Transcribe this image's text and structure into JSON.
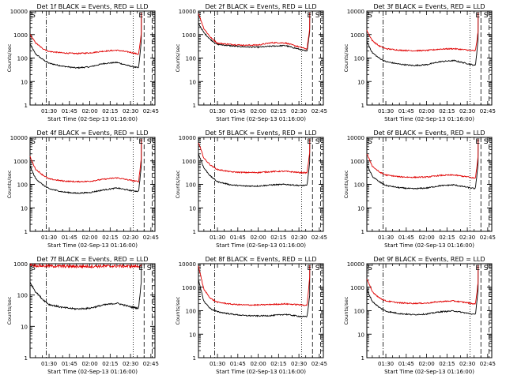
{
  "colors": {
    "events": "#000000",
    "lld": "#e00000",
    "axes": "#000000"
  },
  "chart_data": [
    {
      "type": "line",
      "title": "Det 1f BLACK = Events, RED = LLD",
      "xlabel": "Start Time (02-Sep-13 01:16:00)",
      "ylabel": "Counts/sec",
      "yscale": "log",
      "ylim": [
        1,
        10000
      ],
      "x_ticks": [
        "01:30",
        "01:45",
        "02:00",
        "02:15",
        "02:30",
        "02:45"
      ],
      "y_ticks": [
        "1",
        "10",
        "100",
        "1000",
        "10000"
      ],
      "markers": [
        "S",
        "E",
        "S"
      ],
      "series": [
        {
          "name": "BLACK = Events",
          "x": [
            "01:16",
            "01:20",
            "01:25",
            "01:30",
            "01:40",
            "01:50",
            "02:00",
            "02:10",
            "02:20",
            "02:30",
            "02:36",
            "02:38"
          ],
          "values": [
            400,
            150,
            90,
            60,
            45,
            38,
            42,
            58,
            65,
            45,
            38,
            600
          ]
        },
        {
          "name": "RED = LLD",
          "x": [
            "01:16",
            "01:20",
            "01:25",
            "01:30",
            "01:40",
            "01:50",
            "02:00",
            "02:10",
            "02:20",
            "02:30",
            "02:36",
            "02:38"
          ],
          "values": [
            1000,
            450,
            260,
            190,
            165,
            155,
            165,
            195,
            215,
            175,
            145,
            1200
          ]
        }
      ]
    },
    {
      "type": "line",
      "title": "Det 2f BLACK = Events, RED = LLD",
      "xlabel": "Start Time (02-Sep-13 01:16:00)",
      "ylabel": "Counts/sec",
      "yscale": "log",
      "ylim": [
        1,
        10000
      ],
      "x_ticks": [
        "01:30",
        "01:45",
        "02:00",
        "02:15",
        "02:30",
        "02:45"
      ],
      "y_ticks": [
        "1",
        "10",
        "100",
        "1000",
        "10000"
      ],
      "markers": [
        "E",
        "S"
      ],
      "series": [
        {
          "name": "BLACK = Events",
          "x": [
            "01:16",
            "01:20",
            "01:25",
            "01:30",
            "01:40",
            "01:50",
            "02:00",
            "02:10",
            "02:20",
            "02:30",
            "02:36",
            "02:38"
          ],
          "values": [
            3000,
            1200,
            600,
            380,
            330,
            300,
            290,
            320,
            340,
            240,
            190,
            1500
          ]
        },
        {
          "name": "RED = LLD",
          "x": [
            "01:16",
            "01:20",
            "01:25",
            "01:30",
            "01:40",
            "01:50",
            "02:00",
            "02:10",
            "02:20",
            "02:30",
            "02:36",
            "02:38"
          ],
          "values": [
            8000,
            1800,
            750,
            430,
            380,
            350,
            360,
            450,
            440,
            300,
            240,
            2000
          ]
        }
      ]
    },
    {
      "type": "line",
      "title": "Det 3f BLACK = Events, RED = LLD",
      "xlabel": "Start Time (02-Sep-13 01:16:00)",
      "ylabel": "Counts/sec",
      "yscale": "log",
      "ylim": [
        1,
        10000
      ],
      "x_ticks": [
        "01:30",
        "01:45",
        "02:00",
        "02:15",
        "02:30",
        "02:45"
      ],
      "y_ticks": [
        "1",
        "10",
        "100",
        "1000",
        "10000"
      ],
      "markers": [
        "S",
        "E",
        "S"
      ],
      "series": [
        {
          "name": "BLACK = Events",
          "x": [
            "01:16",
            "01:20",
            "01:25",
            "01:30",
            "01:40",
            "01:50",
            "02:00",
            "02:10",
            "02:20",
            "02:30",
            "02:36",
            "02:38"
          ],
          "values": [
            500,
            170,
            100,
            70,
            55,
            48,
            52,
            70,
            78,
            58,
            48,
            700
          ]
        },
        {
          "name": "RED = LLD",
          "x": [
            "01:16",
            "01:20",
            "01:25",
            "01:30",
            "01:40",
            "01:50",
            "02:00",
            "02:10",
            "02:20",
            "02:30",
            "02:36",
            "02:38"
          ],
          "values": [
            1500,
            550,
            330,
            250,
            215,
            205,
            210,
            240,
            250,
            220,
            200,
            1500
          ]
        }
      ]
    },
    {
      "type": "line",
      "title": "Det 4f BLACK = Events, RED = LLD",
      "xlabel": "Start Time (02-Sep-13 01:16:00)",
      "ylabel": "Counts/sec",
      "yscale": "log",
      "ylim": [
        1,
        10000
      ],
      "x_ticks": [
        "01:30",
        "01:45",
        "02:00",
        "02:15",
        "02:30",
        "02:45"
      ],
      "y_ticks": [
        "1",
        "10",
        "100",
        "1000",
        "10000"
      ],
      "markers": [
        "S",
        "E",
        "S"
      ],
      "series": [
        {
          "name": "BLACK = Events",
          "x": [
            "01:16",
            "01:20",
            "01:25",
            "01:30",
            "01:40",
            "01:50",
            "02:00",
            "02:10",
            "02:20",
            "02:30",
            "02:36",
            "02:38"
          ],
          "values": [
            600,
            180,
            100,
            65,
            48,
            42,
            45,
            58,
            70,
            55,
            50,
            700
          ]
        },
        {
          "name": "RED = LLD",
          "x": [
            "01:16",
            "01:20",
            "01:25",
            "01:30",
            "01:40",
            "01:50",
            "02:00",
            "02:10",
            "02:20",
            "02:30",
            "02:36",
            "02:38"
          ],
          "values": [
            1500,
            450,
            260,
            170,
            140,
            130,
            135,
            165,
            190,
            150,
            130,
            1500
          ]
        }
      ]
    },
    {
      "type": "line",
      "title": "Det 5f BLACK = Events, RED = LLD",
      "xlabel": "Start Time (02-Sep-13 01:16:00)",
      "ylabel": "Counts/sec",
      "yscale": "log",
      "ylim": [
        1,
        10000
      ],
      "x_ticks": [
        "01:30",
        "01:45",
        "02:00",
        "02:15",
        "02:30",
        "02:45"
      ],
      "y_ticks": [
        "1",
        "10",
        "100",
        "1000",
        "10000"
      ],
      "markers": [
        "E",
        "S"
      ],
      "series": [
        {
          "name": "BLACK = Events",
          "x": [
            "01:16",
            "01:20",
            "01:25",
            "01:30",
            "01:40",
            "01:50",
            "02:00",
            "02:10",
            "02:20",
            "02:30",
            "02:36",
            "02:38"
          ],
          "values": [
            2000,
            500,
            220,
            130,
            95,
            85,
            85,
            95,
            100,
            90,
            90,
            1000
          ]
        },
        {
          "name": "RED = LLD",
          "x": [
            "01:16",
            "01:20",
            "01:25",
            "01:30",
            "01:40",
            "01:50",
            "02:00",
            "02:10",
            "02:20",
            "02:30",
            "02:36",
            "02:38"
          ],
          "values": [
            6000,
            1300,
            650,
            430,
            340,
            320,
            320,
            350,
            360,
            320,
            310,
            2500
          ]
        }
      ]
    },
    {
      "type": "line",
      "title": "Det 6f BLACK = Events, RED = LLD",
      "xlabel": "Start Time (02-Sep-13 01:16:00)",
      "ylabel": "Counts/sec",
      "yscale": "log",
      "ylim": [
        1,
        10000
      ],
      "x_ticks": [
        "01:30",
        "01:45",
        "02:00",
        "02:15",
        "02:30",
        "02:45"
      ],
      "y_ticks": [
        "1",
        "10",
        "100",
        "1000",
        "10000"
      ],
      "markers": [
        "S",
        "E",
        "S"
      ],
      "series": [
        {
          "name": "BLACK = Events",
          "x": [
            "01:16",
            "01:20",
            "01:25",
            "01:30",
            "01:40",
            "01:50",
            "02:00",
            "02:10",
            "02:20",
            "02:30",
            "02:36",
            "02:38"
          ],
          "values": [
            700,
            220,
            130,
            90,
            72,
            65,
            70,
            88,
            95,
            75,
            65,
            900
          ]
        },
        {
          "name": "RED = LLD",
          "x": [
            "01:16",
            "01:20",
            "01:25",
            "01:30",
            "01:40",
            "01:50",
            "02:00",
            "02:10",
            "02:20",
            "02:30",
            "02:36",
            "02:38"
          ],
          "values": [
            2000,
            600,
            340,
            250,
            210,
            200,
            205,
            240,
            250,
            210,
            180,
            1800
          ]
        }
      ]
    },
    {
      "type": "line",
      "title": "Det 7f BLACK = Events, RED = LLD",
      "xlabel": "Start Time (02-Sep-13 01:16:00)",
      "ylabel": "Counts/sec",
      "yscale": "log",
      "ylim": [
        1,
        1000
      ],
      "x_ticks": [
        "01:30",
        "01:45",
        "02:00",
        "02:15",
        "02:30",
        "02:45"
      ],
      "y_ticks": [
        "1",
        "10",
        "100",
        "1000"
      ],
      "markers": [
        "S",
        "E",
        "S"
      ],
      "series": [
        {
          "name": "BLACK = Events",
          "x": [
            "01:16",
            "01:20",
            "01:25",
            "01:30",
            "01:40",
            "01:50",
            "02:00",
            "02:10",
            "02:20",
            "02:30",
            "02:36",
            "02:38"
          ],
          "values": [
            250,
            130,
            75,
            50,
            40,
            36,
            38,
            48,
            55,
            42,
            38,
            300
          ]
        },
        {
          "name": "RED = LLD",
          "x": [
            "01:16",
            "01:20",
            "01:25",
            "01:30",
            "01:40",
            "01:50",
            "02:00",
            "02:10",
            "02:20",
            "02:30",
            "02:36",
            "02:38"
          ],
          "values": [
            950,
            870,
            850,
            840,
            830,
            820,
            825,
            835,
            840,
            830,
            820,
            950
          ]
        }
      ]
    },
    {
      "type": "line",
      "title": "Det 8f BLACK = Events, RED = LLD",
      "xlabel": "Start Time (02-Sep-13 01:16:00)",
      "ylabel": "Counts/sec",
      "yscale": "log",
      "ylim": [
        1,
        10000
      ],
      "x_ticks": [
        "01:30",
        "01:45",
        "02:00",
        "02:15",
        "02:30",
        "02:45"
      ],
      "y_ticks": [
        "1",
        "10",
        "100",
        "1000",
        "10000"
      ],
      "markers": [
        "E",
        "S"
      ],
      "series": [
        {
          "name": "BLACK = Events",
          "x": [
            "01:16",
            "01:20",
            "01:25",
            "01:30",
            "01:40",
            "01:50",
            "02:00",
            "02:10",
            "02:20",
            "02:30",
            "02:36",
            "02:38"
          ],
          "values": [
            2000,
            250,
            120,
            90,
            72,
            62,
            60,
            62,
            70,
            58,
            55,
            500
          ]
        },
        {
          "name": "RED = LLD",
          "x": [
            "01:16",
            "01:20",
            "01:25",
            "01:30",
            "01:40",
            "01:50",
            "02:00",
            "02:10",
            "02:20",
            "02:30",
            "02:36",
            "02:38"
          ],
          "values": [
            8000,
            800,
            330,
            230,
            190,
            175,
            175,
            185,
            195,
            180,
            170,
            3000
          ]
        }
      ]
    },
    {
      "type": "line",
      "title": "Det 9f BLACK = Events, RED = LLD",
      "xlabel": "Start Time (02-Sep-13 01:16:00)",
      "ylabel": "Counts/sec",
      "yscale": "log",
      "ylim": [
        1,
        10000
      ],
      "x_ticks": [
        "01:30",
        "01:45",
        "02:00",
        "02:15",
        "02:30",
        "02:45"
      ],
      "y_ticks": [
        "1",
        "10",
        "100",
        "1000",
        "10000"
      ],
      "markers": [
        "S",
        "E",
        "S"
      ],
      "series": [
        {
          "name": "BLACK = Events",
          "x": [
            "01:16",
            "01:20",
            "01:25",
            "01:30",
            "01:40",
            "01:50",
            "02:00",
            "02:10",
            "02:20",
            "02:30",
            "02:36",
            "02:38"
          ],
          "values": [
            800,
            250,
            140,
            95,
            75,
            68,
            72,
            90,
            98,
            78,
            68,
            900
          ]
        },
        {
          "name": "RED = LLD",
          "x": [
            "01:16",
            "01:20",
            "01:25",
            "01:30",
            "01:40",
            "01:50",
            "02:00",
            "02:10",
            "02:20",
            "02:30",
            "02:36",
            "02:38"
          ],
          "values": [
            2200,
            650,
            360,
            260,
            215,
            205,
            210,
            245,
            260,
            220,
            190,
            1800
          ]
        }
      ]
    }
  ]
}
